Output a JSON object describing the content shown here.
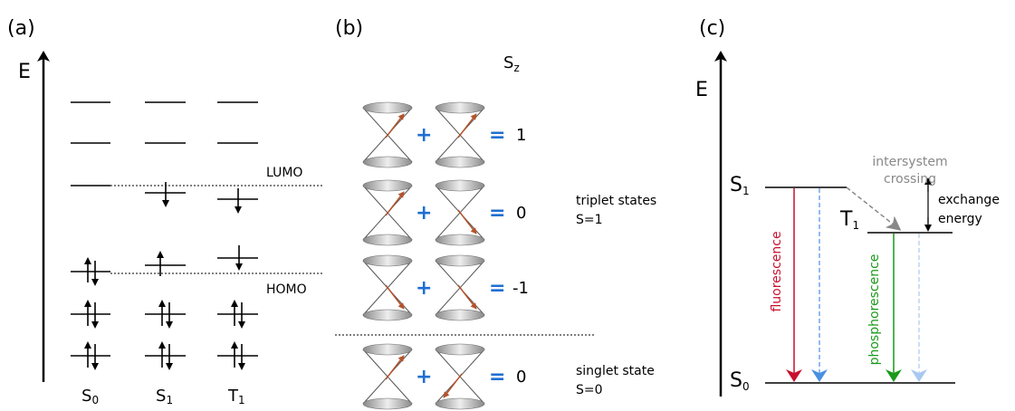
{
  "panel_a": {
    "label": "(a)",
    "axis_label": "E",
    "lumo": "LUMO",
    "homo": "HOMO",
    "states": [
      {
        "main": "S",
        "sub": "0"
      },
      {
        "main": "S",
        "sub": "1"
      },
      {
        "main": "T",
        "sub": "1"
      }
    ]
  },
  "panel_b": {
    "label": "(b)",
    "sz_header": {
      "main": "S",
      "sub": "z"
    },
    "plus": "+",
    "equals": "=",
    "values": [
      1,
      0,
      -1,
      0
    ],
    "triplet": {
      "name": "triplet states",
      "spin": "S=1"
    },
    "singlet": {
      "name": "singlet state",
      "spin": "S=0"
    }
  },
  "panel_c": {
    "label": "(c)",
    "axis_label": "E",
    "levels": [
      {
        "main": "S",
        "sub": "1"
      },
      {
        "main": "T",
        "sub": "1"
      },
      {
        "main": "S",
        "sub": "0"
      }
    ],
    "intersystem_crossing": [
      "intersystem",
      "crossing"
    ],
    "exchange_energy": [
      "exchange",
      "energy"
    ],
    "fluorescence": "fluorescence",
    "phosphorescence": "phosphorescence"
  }
}
